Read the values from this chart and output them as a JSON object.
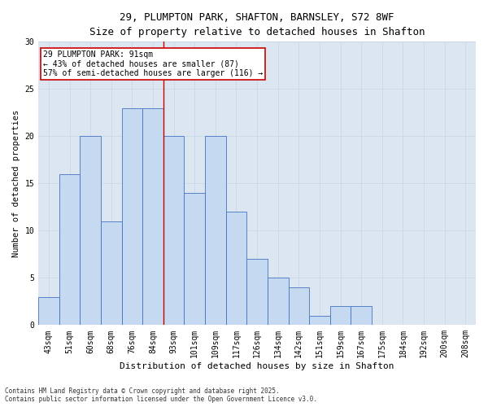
{
  "title_line1": "29, PLUMPTON PARK, SHAFTON, BARNSLEY, S72 8WF",
  "title_line2": "Size of property relative to detached houses in Shafton",
  "xlabel": "Distribution of detached houses by size in Shafton",
  "ylabel": "Number of detached properties",
  "categories": [
    "43sqm",
    "51sqm",
    "60sqm",
    "68sqm",
    "76sqm",
    "84sqm",
    "93sqm",
    "101sqm",
    "109sqm",
    "117sqm",
    "126sqm",
    "134sqm",
    "142sqm",
    "151sqm",
    "159sqm",
    "167sqm",
    "175sqm",
    "184sqm",
    "192sqm",
    "200sqm",
    "208sqm"
  ],
  "values": [
    3,
    16,
    20,
    11,
    23,
    23,
    20,
    14,
    20,
    12,
    7,
    5,
    4,
    1,
    2,
    2,
    0,
    0,
    0,
    0,
    0
  ],
  "bar_color": "#c5d9f1",
  "bar_edge_color": "#4472c4",
  "grid_color": "#c8d8e8",
  "background_color": "#dce6f1",
  "marker_line_color": "#cc0000",
  "annotation_text": "29 PLUMPTON PARK: 91sqm\n← 43% of detached houses are smaller (87)\n57% of semi-detached houses are larger (116) →",
  "annotation_box_color": "#ffffff",
  "annotation_box_edge": "#cc0000",
  "footnote": "Contains HM Land Registry data © Crown copyright and database right 2025.\nContains public sector information licensed under the Open Government Licence v3.0.",
  "ylim": [
    0,
    30
  ],
  "yticks": [
    0,
    5,
    10,
    15,
    20,
    25,
    30
  ],
  "title1_fontsize": 9,
  "title2_fontsize": 8.5,
  "xlabel_fontsize": 8,
  "ylabel_fontsize": 7.5,
  "tick_fontsize": 7,
  "annot_fontsize": 7,
  "footnote_fontsize": 5.5
}
